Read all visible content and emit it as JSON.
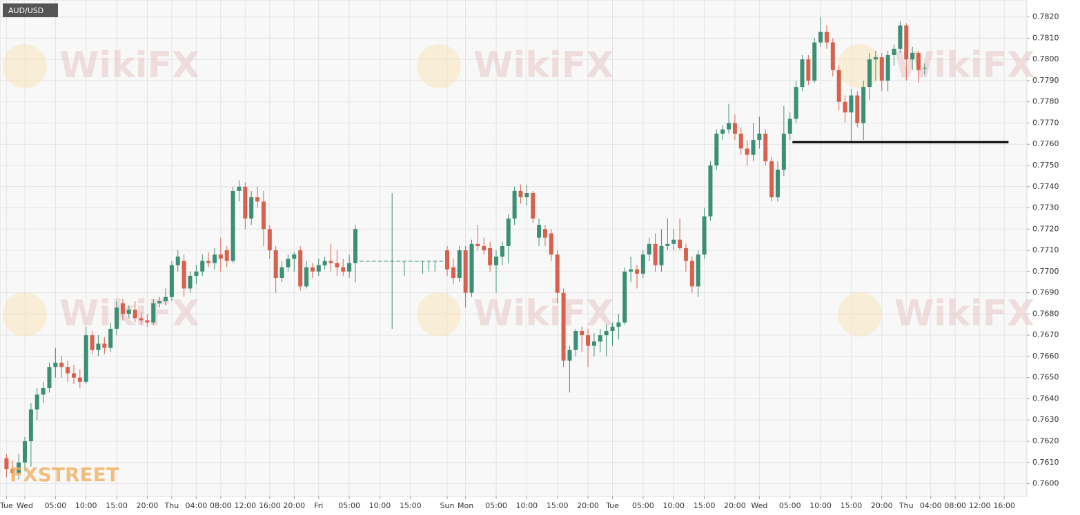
{
  "chart_data": {
    "type": "candlestick",
    "title": "AUD/USD",
    "watermark": "WikiFX",
    "logo": "FXSTREET",
    "up_color": "#3b8f74",
    "down_color": "#d9604c",
    "grid": true,
    "xlim": [
      -1.06,
      166.7
    ],
    "ylim": [
      0.7594,
      0.7828
    ],
    "xticks": [
      {
        "value": 0,
        "label": "Tue"
      },
      {
        "value": 3,
        "label": "Wed"
      },
      {
        "value": 8,
        "label": "05:00"
      },
      {
        "value": 13,
        "label": "10:00"
      },
      {
        "value": 18,
        "label": "15:00"
      },
      {
        "value": 23,
        "label": "20:00"
      },
      {
        "value": 27,
        "label": "Thu"
      },
      {
        "value": 31,
        "label": "04:00"
      },
      {
        "value": 35,
        "label": "08:00"
      },
      {
        "value": 39,
        "label": "12:00"
      },
      {
        "value": 43,
        "label": "16:00"
      },
      {
        "value": 47,
        "label": "20:00"
      },
      {
        "value": 51,
        "label": "Fri"
      },
      {
        "value": 56,
        "label": "05:00"
      },
      {
        "value": 61,
        "label": "10:00"
      },
      {
        "value": 66,
        "label": "15:00"
      },
      {
        "value": 72,
        "label": "Sun"
      },
      {
        "value": 75,
        "label": "Mon"
      },
      {
        "value": 80,
        "label": "05:00"
      },
      {
        "value": 85,
        "label": "10:00"
      },
      {
        "value": 90,
        "label": "15:00"
      },
      {
        "value": 95,
        "label": "20:00"
      },
      {
        "value": 99,
        "label": "Tue"
      },
      {
        "value": 104,
        "label": "05:00"
      },
      {
        "value": 109,
        "label": "10:00"
      },
      {
        "value": 114,
        "label": "15:00"
      },
      {
        "value": 119,
        "label": "20:00"
      },
      {
        "value": 123,
        "label": "Wed"
      },
      {
        "value": 128,
        "label": "05:00"
      },
      {
        "value": 133,
        "label": "10:00"
      },
      {
        "value": 138,
        "label": "15:00"
      },
      {
        "value": 143,
        "label": "20:00"
      },
      {
        "value": 147,
        "label": "Thu"
      },
      {
        "value": 151,
        "label": "04:00"
      },
      {
        "value": 155,
        "label": "08:00"
      },
      {
        "value": 159,
        "label": "12:00"
      },
      {
        "value": 163,
        "label": "16:00"
      }
    ],
    "yticks": [
      {
        "value": 0.76,
        "label": "0.7600"
      },
      {
        "value": 0.761,
        "label": "0.7610"
      },
      {
        "value": 0.762,
        "label": "0.7620"
      },
      {
        "value": 0.763,
        "label": "0.7630"
      },
      {
        "value": 0.764,
        "label": "0.7640"
      },
      {
        "value": 0.765,
        "label": "0.7650"
      },
      {
        "value": 0.766,
        "label": "0.7660"
      },
      {
        "value": 0.767,
        "label": "0.7670"
      },
      {
        "value": 0.768,
        "label": "0.7680"
      },
      {
        "value": 0.769,
        "label": "0.7690"
      },
      {
        "value": 0.77,
        "label": "0.7700"
      },
      {
        "value": 0.771,
        "label": "0.7710"
      },
      {
        "value": 0.772,
        "label": "0.7720"
      },
      {
        "value": 0.773,
        "label": "0.7730"
      },
      {
        "value": 0.774,
        "label": "0.7740"
      },
      {
        "value": 0.775,
        "label": "0.7750"
      },
      {
        "value": 0.776,
        "label": "0.7760"
      },
      {
        "value": 0.777,
        "label": "0.7770"
      },
      {
        "value": 0.778,
        "label": "0.7780"
      },
      {
        "value": 0.779,
        "label": "0.7790"
      },
      {
        "value": 0.78,
        "label": "0.7800"
      },
      {
        "value": 0.781,
        "label": "0.7810"
      },
      {
        "value": 0.782,
        "label": "0.7820"
      }
    ],
    "hline": {
      "value": 0.7761,
      "x": [
        128.4,
        163.7
      ],
      "color": "#000000"
    },
    "x": [
      0,
      1,
      2,
      3,
      4,
      5,
      6,
      7,
      8,
      9,
      10,
      11,
      12,
      13,
      14,
      15,
      16,
      17,
      18,
      19,
      20,
      21,
      22,
      23,
      24,
      25,
      26,
      27,
      28,
      29,
      30,
      31,
      32,
      33,
      34,
      35,
      36,
      37,
      38,
      39,
      40,
      41,
      42,
      43,
      44,
      45,
      46,
      47,
      48,
      49,
      50,
      51,
      52,
      53,
      54,
      55,
      56,
      57,
      58,
      59,
      60,
      61,
      62,
      63,
      64,
      65,
      66,
      67,
      68,
      69,
      70,
      71,
      72,
      73,
      74,
      75,
      76,
      77,
      78,
      79,
      80,
      81,
      82,
      83,
      84,
      85,
      86,
      87,
      88,
      89,
      90,
      91,
      92,
      93,
      94,
      95,
      96,
      97,
      98,
      99,
      100,
      101,
      102,
      103,
      104,
      105,
      106,
      107,
      108,
      109,
      110,
      111,
      112,
      113,
      114,
      115,
      116,
      117,
      118,
      119,
      120,
      121,
      122,
      123,
      124,
      125,
      126,
      127,
      128,
      129,
      130,
      131,
      132,
      133,
      134,
      135,
      136,
      137,
      138,
      139,
      140,
      141,
      142,
      143,
      144,
      145,
      146,
      147,
      148,
      149,
      150
    ],
    "open": [
      0.7612,
      0.7607,
      0.7605,
      0.761,
      0.762,
      0.7635,
      0.7642,
      0.7645,
      0.7655,
      0.7657,
      0.7655,
      0.7652,
      0.765,
      0.7648,
      0.767,
      0.7663,
      0.7666,
      0.7664,
      0.7673,
      0.7685,
      0.768,
      0.7682,
      0.7678,
      0.7677,
      0.7676,
      0.7685,
      0.7686,
      0.7688,
      0.7703,
      0.7705,
      0.7692,
      0.7698,
      0.77,
      0.7705,
      0.7704,
      0.7708,
      0.771,
      0.7705,
      0.7738,
      0.774,
      0.7725,
      0.7735,
      0.7733,
      0.772,
      0.771,
      0.7697,
      0.7702,
      0.7706,
      0.771,
      0.7693,
      0.7702,
      0.77,
      0.7703,
      0.7705,
      0.7704,
      0.7702,
      0.77,
      0.7704,
      0.7705,
      0.7705,
      0.7705,
      0.7705,
      0.7705,
      0.7705,
      0.7705,
      0.7705,
      0.7705,
      0.7705,
      0.7705,
      0.7705,
      0.7705,
      0.7705,
      0.771,
      0.7702,
      0.7697,
      0.771,
      0.769,
      0.7713,
      0.7712,
      0.7711,
      0.7703,
      0.7707,
      0.7712,
      0.7725,
      0.7738,
      0.7735,
      0.7737,
      0.7716,
      0.772,
      0.7718,
      0.7708,
      0.769,
      0.7658,
      0.7663,
      0.7672,
      0.767,
      0.7665,
      0.7667,
      0.767,
      0.7672,
      0.7674,
      0.7676,
      0.77,
      0.7701,
      0.7699,
      0.7708,
      0.7713,
      0.7703,
      0.7712,
      0.7713,
      0.7715,
      0.7711,
      0.7705,
      0.7693,
      0.7708,
      0.7726,
      0.775,
      0.7765,
      0.7767,
      0.777,
      0.7765,
      0.7758,
      0.7755,
      0.7762,
      0.7765,
      0.7752,
      0.7735,
      0.7748,
      0.7765,
      0.7772,
      0.7787,
      0.78,
      0.779,
      0.7808,
      0.7813,
      0.7808,
      0.7795,
      0.778,
      0.7775,
      0.7783,
      0.777,
      0.7787,
      0.78,
      0.7801,
      0.779,
      0.7802,
      0.7805,
      0.7816,
      0.78,
      0.7803,
      0.7796
    ],
    "high": [
      0.7614,
      0.7611,
      0.7614,
      0.7622,
      0.7638,
      0.7645,
      0.7648,
      0.7657,
      0.7664,
      0.766,
      0.7658,
      0.7656,
      0.7654,
      0.7674,
      0.7672,
      0.767,
      0.7669,
      0.7676,
      0.7686,
      0.7687,
      0.7684,
      0.7686,
      0.7681,
      0.768,
      0.7687,
      0.7688,
      0.7692,
      0.7705,
      0.771,
      0.7708,
      0.77,
      0.7703,
      0.7708,
      0.7709,
      0.7711,
      0.7716,
      0.7712,
      0.774,
      0.7743,
      0.7742,
      0.7738,
      0.774,
      0.7738,
      0.7722,
      0.7712,
      0.7705,
      0.7708,
      0.7709,
      0.7712,
      0.7705,
      0.7704,
      0.7706,
      0.7707,
      0.7713,
      0.771,
      0.7706,
      0.7708,
      0.7722,
      0.7705,
      0.7705,
      0.7705,
      0.7705,
      0.7705,
      0.7737,
      0.7705,
      0.7705,
      0.7705,
      0.7705,
      0.7705,
      0.7705,
      0.7705,
      0.7705,
      0.7712,
      0.7706,
      0.7712,
      0.7712,
      0.7715,
      0.7722,
      0.7716,
      0.7714,
      0.771,
      0.7714,
      0.7727,
      0.774,
      0.7741,
      0.7741,
      0.7738,
      0.7725,
      0.7722,
      0.772,
      0.771,
      0.7692,
      0.7665,
      0.7673,
      0.7674,
      0.7673,
      0.7671,
      0.7673,
      0.7675,
      0.7676,
      0.768,
      0.7702,
      0.7707,
      0.7703,
      0.771,
      0.7716,
      0.7718,
      0.772,
      0.7725,
      0.772,
      0.7725,
      0.7713,
      0.7707,
      0.771,
      0.773,
      0.7752,
      0.7767,
      0.7769,
      0.7779,
      0.7774,
      0.7768,
      0.7762,
      0.777,
      0.7773,
      0.7767,
      0.7754,
      0.7752,
      0.7778,
      0.7775,
      0.779,
      0.7802,
      0.7802,
      0.781,
      0.782,
      0.7816,
      0.781,
      0.7797,
      0.7783,
      0.7786,
      0.7785,
      0.779,
      0.7803,
      0.7804,
      0.7803,
      0.7804,
      0.7807,
      0.7818,
      0.7817,
      0.7806,
      0.7804,
      0.7798
    ],
    "low": [
      0.7603,
      0.7603,
      0.7602,
      0.7606,
      0.7608,
      0.763,
      0.7638,
      0.7643,
      0.765,
      0.765,
      0.7648,
      0.7647,
      0.7645,
      0.7647,
      0.7661,
      0.766,
      0.7661,
      0.7662,
      0.767,
      0.7677,
      0.7678,
      0.7676,
      0.7675,
      0.7674,
      0.7675,
      0.7683,
      0.7684,
      0.7686,
      0.77,
      0.7688,
      0.769,
      0.7694,
      0.7698,
      0.7702,
      0.7701,
      0.77,
      0.7702,
      0.7704,
      0.7733,
      0.772,
      0.7722,
      0.773,
      0.7712,
      0.7706,
      0.769,
      0.7695,
      0.77,
      0.77,
      0.7691,
      0.7692,
      0.7697,
      0.7698,
      0.7701,
      0.77,
      0.7698,
      0.7698,
      0.7697,
      0.7695,
      0.7705,
      0.7705,
      0.7705,
      0.7705,
      0.7705,
      0.7673,
      0.7705,
      0.7698,
      0.7705,
      0.7705,
      0.7699,
      0.77,
      0.77,
      0.7705,
      0.7698,
      0.7694,
      0.7695,
      0.7683,
      0.7688,
      0.771,
      0.7708,
      0.77,
      0.769,
      0.7703,
      0.7704,
      0.7722,
      0.7732,
      0.7731,
      0.7723,
      0.7712,
      0.7712,
      0.7705,
      0.7685,
      0.7655,
      0.7643,
      0.766,
      0.7662,
      0.7655,
      0.766,
      0.7662,
      0.766,
      0.7665,
      0.7668,
      0.7675,
      0.7695,
      0.7692,
      0.7697,
      0.7705,
      0.77,
      0.77,
      0.771,
      0.771,
      0.771,
      0.77,
      0.769,
      0.7688,
      0.7706,
      0.7724,
      0.7748,
      0.7762,
      0.7765,
      0.7762,
      0.7755,
      0.775,
      0.7752,
      0.7758,
      0.775,
      0.7733,
      0.7733,
      0.7745,
      0.7762,
      0.777,
      0.7785,
      0.7788,
      0.7789,
      0.7806,
      0.7805,
      0.7792,
      0.7776,
      0.777,
      0.7761,
      0.7768,
      0.7762,
      0.7781,
      0.779,
      0.7785,
      0.7785,
      0.7797,
      0.7803,
      0.779,
      0.7795,
      0.7789,
      0.7793
    ],
    "close": [
      0.7607,
      0.7605,
      0.761,
      0.762,
      0.7635,
      0.7642,
      0.7645,
      0.7655,
      0.7657,
      0.7655,
      0.7652,
      0.765,
      0.7648,
      0.767,
      0.7663,
      0.7666,
      0.7664,
      0.7673,
      0.7683,
      0.768,
      0.7682,
      0.7678,
      0.7677,
      0.7676,
      0.7685,
      0.7686,
      0.7688,
      0.7703,
      0.7707,
      0.7692,
      0.7698,
      0.77,
      0.7705,
      0.7704,
      0.7708,
      0.7706,
      0.7705,
      0.7738,
      0.774,
      0.7725,
      0.7735,
      0.7733,
      0.772,
      0.771,
      0.7697,
      0.7702,
      0.7706,
      0.7708,
      0.7693,
      0.7702,
      0.77,
      0.7703,
      0.7705,
      0.7704,
      0.7702,
      0.77,
      0.7704,
      0.772,
      0.7705,
      0.7705,
      0.7705,
      0.7705,
      0.7705,
      0.7705,
      0.7705,
      0.7705,
      0.7705,
      0.7705,
      0.7705,
      0.7705,
      0.7705,
      0.7705,
      0.7701,
      0.7697,
      0.771,
      0.769,
      0.7713,
      0.7712,
      0.771,
      0.7703,
      0.7707,
      0.7712,
      0.7725,
      0.7738,
      0.7735,
      0.7737,
      0.7725,
      0.7722,
      0.7716,
      0.7708,
      0.769,
      0.7658,
      0.7663,
      0.7672,
      0.767,
      0.7665,
      0.7667,
      0.767,
      0.7672,
      0.7674,
      0.7676,
      0.77,
      0.7701,
      0.7699,
      0.7708,
      0.7713,
      0.7703,
      0.7712,
      0.7713,
      0.7715,
      0.7711,
      0.7705,
      0.7693,
      0.7708,
      0.7726,
      0.775,
      0.7765,
      0.7767,
      0.777,
      0.7765,
      0.7758,
      0.7755,
      0.7762,
      0.7765,
      0.7752,
      0.7735,
      0.7748,
      0.7765,
      0.7772,
      0.7787,
      0.78,
      0.779,
      0.7808,
      0.7813,
      0.7808,
      0.7795,
      0.778,
      0.7775,
      0.7783,
      0.777,
      0.7787,
      0.78,
      0.7801,
      0.779,
      0.7802,
      0.7805,
      0.7816,
      0.78,
      0.7803,
      0.7795,
      0.7796
    ]
  }
}
